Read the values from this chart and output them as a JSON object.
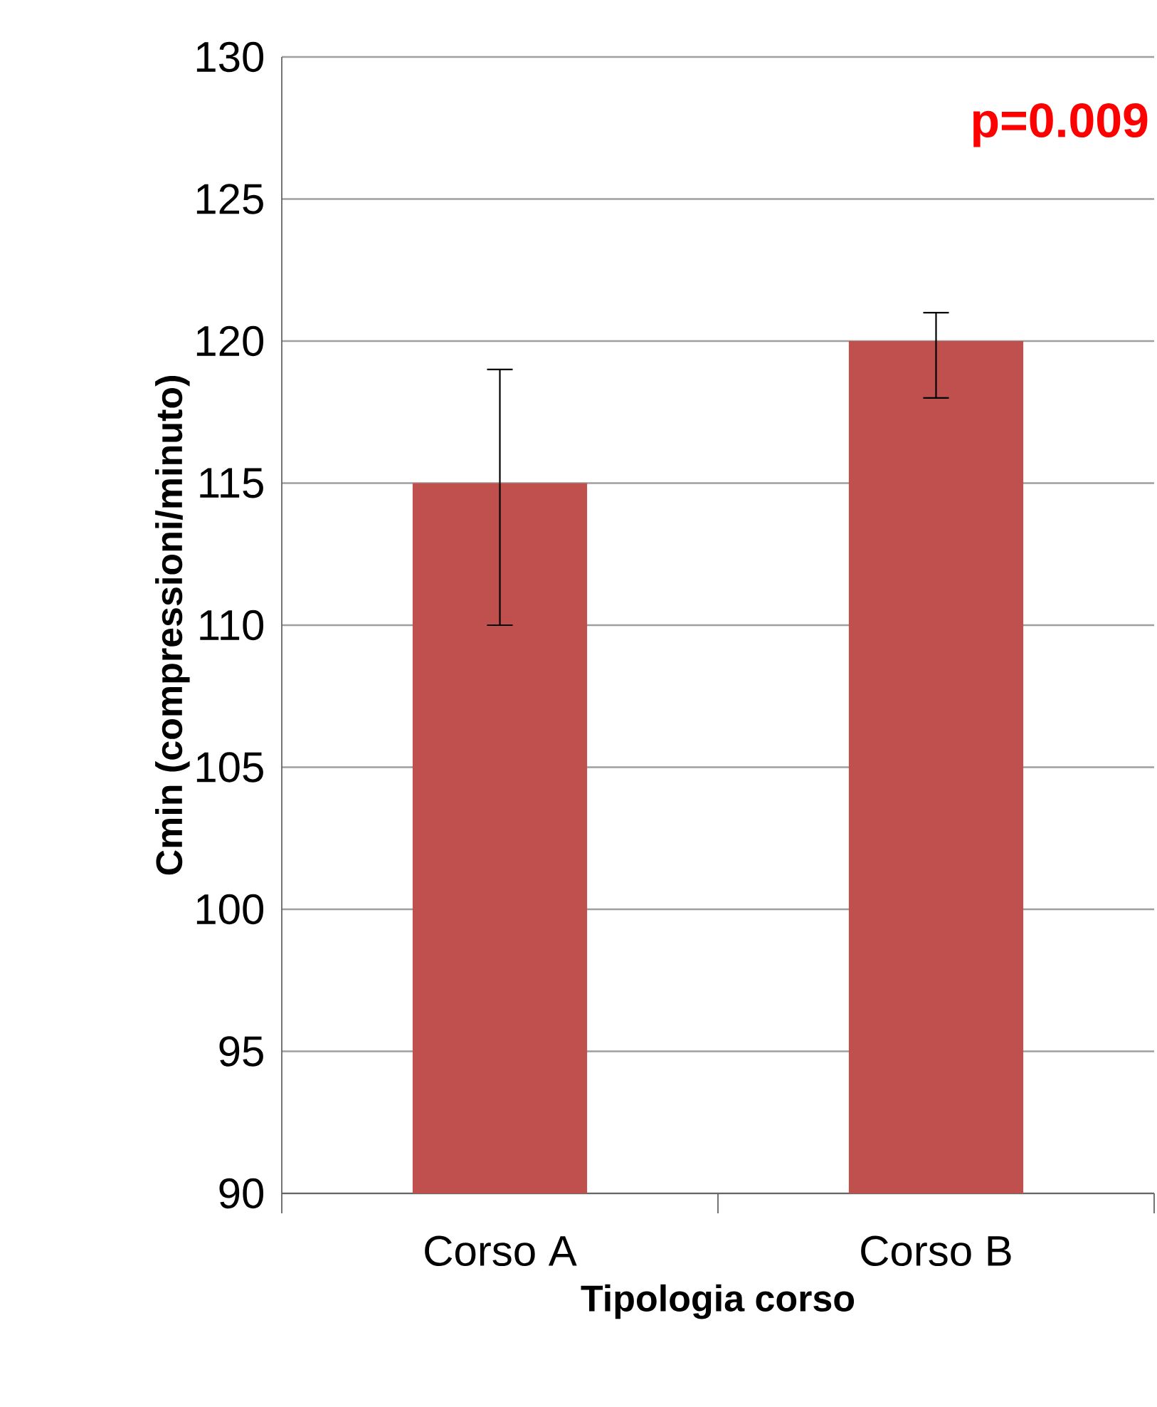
{
  "chart_data": {
    "type": "bar",
    "xlabel": "Tipologia corso",
    "ylabel": "Cmin (compressioni/minuto)",
    "categories": [
      "Corso A",
      "Corso B"
    ],
    "values": [
      115,
      120
    ],
    "errors": [
      [
        110,
        119
      ],
      [
        118,
        121
      ]
    ],
    "color": "#c0504d",
    "ylim": [
      90,
      130
    ],
    "yticks": [
      90,
      95,
      100,
      105,
      110,
      115,
      120,
      125,
      130
    ],
    "grid": "y",
    "annotations": [
      "**p=0.009**"
    ]
  }
}
